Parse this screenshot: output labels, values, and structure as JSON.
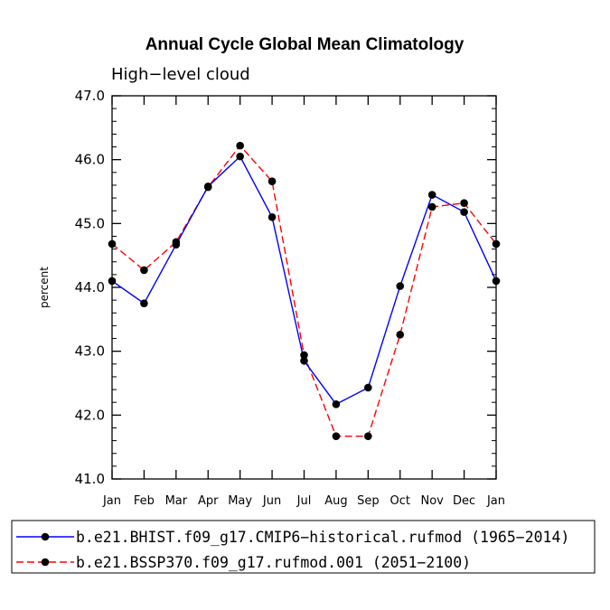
{
  "chart_data": {
    "type": "line",
    "title": "Annual Cycle Global Mean Climatology",
    "subtitle": "High−level cloud",
    "ylabel": "percent",
    "xlabel": "",
    "ylim": [
      41.0,
      47.0
    ],
    "yticks": [
      "41.0",
      "42.0",
      "43.0",
      "44.0",
      "45.0",
      "46.0",
      "47.0"
    ],
    "categories": [
      "Jan",
      "Feb",
      "Mar",
      "Apr",
      "May",
      "Jun",
      "Jul",
      "Aug",
      "Sep",
      "Oct",
      "Nov",
      "Dec",
      "Jan"
    ],
    "series": [
      {
        "name": "b.e21.BHIST.f09_g17.CMIP6−historical.rufmod (1965−2014)",
        "color": "#0000ff",
        "dash": "solid",
        "values": [
          44.1,
          43.75,
          44.67,
          45.58,
          46.05,
          45.1,
          42.85,
          42.17,
          42.43,
          44.02,
          45.45,
          45.18,
          44.1
        ]
      },
      {
        "name": "b.e21.BSSP370.f09_g17.rufmod.001 (2051−2100)",
        "color": "#ff0000",
        "dash": "dashed",
        "values": [
          44.68,
          44.27,
          44.71,
          45.57,
          46.22,
          45.66,
          42.94,
          41.67,
          41.67,
          43.26,
          45.26,
          45.32,
          44.68
        ]
      }
    ],
    "legend_position": "bottom",
    "grid": false
  }
}
